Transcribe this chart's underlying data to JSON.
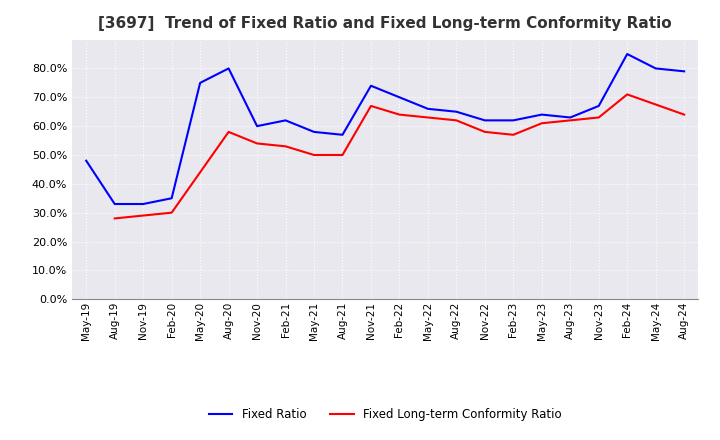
{
  "title": "[3697]  Trend of Fixed Ratio and Fixed Long-term Conformity Ratio",
  "title_fontsize": 11,
  "x_labels": [
    "May-19",
    "Aug-19",
    "Nov-19",
    "Feb-20",
    "May-20",
    "Aug-20",
    "Nov-20",
    "Feb-21",
    "May-21",
    "Aug-21",
    "Nov-21",
    "Feb-22",
    "May-22",
    "Aug-22",
    "Nov-22",
    "Feb-23",
    "May-23",
    "Aug-23",
    "Nov-23",
    "Feb-24",
    "May-24",
    "Aug-24"
  ],
  "fixed_ratio": [
    48,
    33,
    33,
    35,
    75,
    80,
    60,
    62,
    58,
    57,
    74,
    70,
    66,
    65,
    62,
    62,
    64,
    63,
    67,
    85,
    80,
    79
  ],
  "fixed_lt_ratio": [
    null,
    28,
    null,
    30,
    null,
    58,
    54,
    53,
    50,
    50,
    67,
    64,
    63,
    62,
    58,
    57,
    61,
    62,
    63,
    71,
    null,
    64
  ],
  "fixed_ratio_color": "#0000FF",
  "fixed_lt_ratio_color": "#FF0000",
  "ylim": [
    0,
    90
  ],
  "yticks": [
    0,
    10,
    20,
    30,
    40,
    50,
    60,
    70,
    80
  ],
  "background_color": "#FFFFFF",
  "plot_bg_color": "#E8E8EE",
  "grid_color": "#FFFFFF",
  "legend_labels": [
    "Fixed Ratio",
    "Fixed Long-term Conformity Ratio"
  ]
}
